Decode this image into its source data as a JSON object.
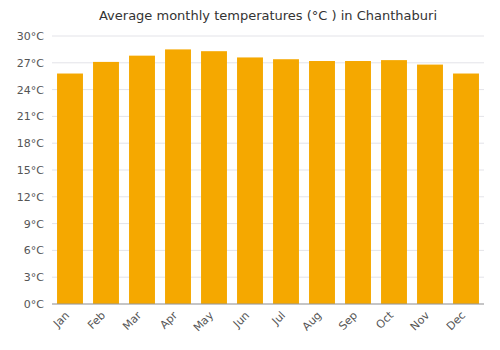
{
  "chart_data": {
    "type": "bar",
    "title": "Average monthly temperatures (°C ) in Chanthaburi",
    "categories": [
      "Jan",
      "Feb",
      "Mar",
      "Apr",
      "May",
      "Jun",
      "Jul",
      "Aug",
      "Sep",
      "Oct",
      "Nov",
      "Dec"
    ],
    "values": [
      25.8,
      27.1,
      27.8,
      28.5,
      28.3,
      27.6,
      27.4,
      27.2,
      27.2,
      27.3,
      26.8,
      25.8
    ],
    "color": "#F5A800",
    "ylim": [
      0,
      30
    ],
    "yticks": [
      {
        "value": 0,
        "label": "0°C"
      },
      {
        "value": 3,
        "label": "3°C"
      },
      {
        "value": 6,
        "label": "6°C"
      },
      {
        "value": 9,
        "label": "9°C"
      },
      {
        "value": 12,
        "label": "12°C"
      },
      {
        "value": 15,
        "label": "15°C"
      },
      {
        "value": 18,
        "label": "18°C"
      },
      {
        "value": 21,
        "label": "21°C"
      },
      {
        "value": 24,
        "label": "24°C"
      },
      {
        "value": 27,
        "label": "27°C"
      },
      {
        "value": 30,
        "label": "30°C"
      }
    ],
    "grid": true
  }
}
